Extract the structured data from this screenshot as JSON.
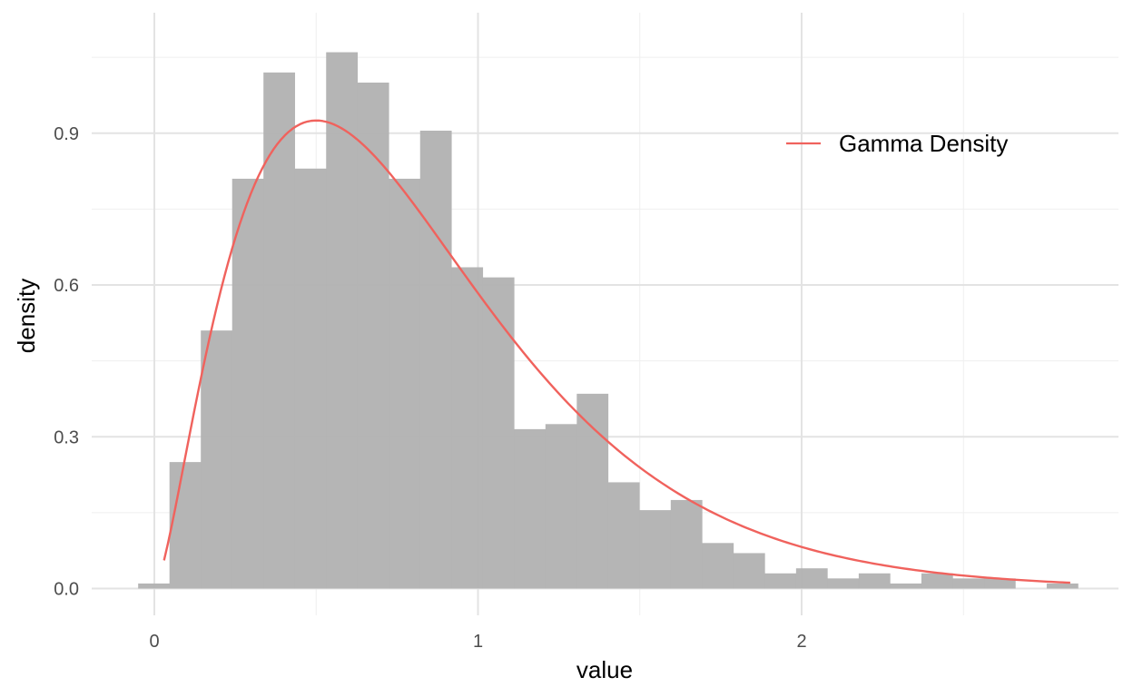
{
  "chart_data": {
    "type": "bar",
    "subtype": "histogram-with-density-curve",
    "title": "",
    "xlabel": "value",
    "ylabel": "density",
    "xlim": [
      -0.05,
      2.85
    ],
    "ylim": [
      0,
      1.085
    ],
    "x_ticks": [
      0,
      1,
      2
    ],
    "x_tick_labels": [
      "0",
      "1",
      "2"
    ],
    "y_ticks": [
      0.0,
      0.3,
      0.6,
      0.9
    ],
    "y_tick_labels": [
      "0.0",
      "0.3",
      "0.6",
      "0.9"
    ],
    "grid": true,
    "legend_position": "top-right",
    "colors": {
      "bars": "#b3b3b3",
      "curve": "#f0625d",
      "grid_major": "#e3e3e3",
      "grid_minor": "#efefef"
    },
    "histogram": {
      "bin_start": -0.05,
      "bin_width": 0.0968,
      "density": [
        0.01,
        0.25,
        0.51,
        0.81,
        1.02,
        0.83,
        1.06,
        1.0,
        0.81,
        0.905,
        0.635,
        0.615,
        0.315,
        0.325,
        0.385,
        0.21,
        0.155,
        0.175,
        0.09,
        0.07,
        0.03,
        0.04,
        0.02,
        0.03,
        0.01,
        0.03,
        0.02,
        0.02,
        0.0,
        0.01
      ]
    },
    "series": [
      {
        "name": "Gamma Density",
        "type": "line",
        "shape": 2.5,
        "rate": 3.0,
        "x_range": [
          0.03,
          2.83
        ]
      }
    ]
  }
}
